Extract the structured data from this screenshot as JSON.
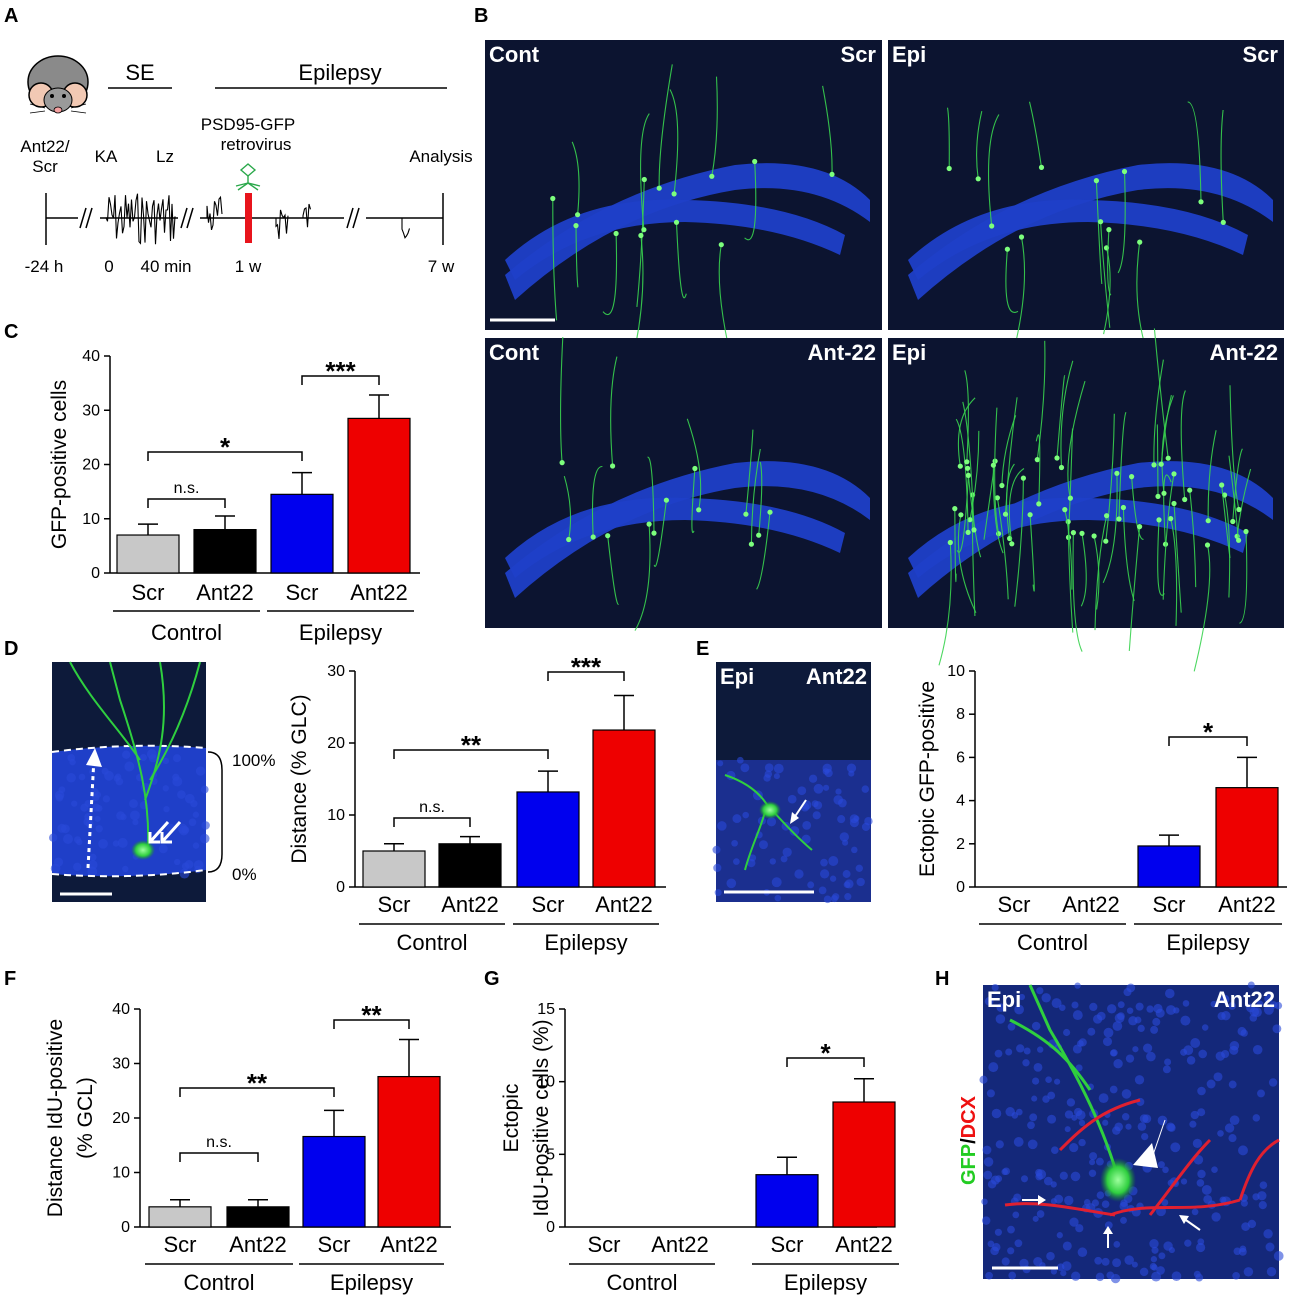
{
  "panel_labels": {
    "A": "A",
    "B": "B",
    "C": "C",
    "D": "D",
    "E": "E",
    "F": "F",
    "G": "G",
    "H": "H"
  },
  "timeline": {
    "mouse_label": "Ant22/\nScr",
    "mouse_label_l1": "Ant22/",
    "mouse_label_l2": "Scr",
    "se_label": "SE",
    "epilepsy_label": "Epilepsy",
    "ka_label": "KA",
    "lz_label": "Lz",
    "virus_l1": "PSD95-GFP",
    "virus_l2": "retrovirus",
    "analysis_label": "Analysis",
    "t_m24": "-24 h",
    "t_0": "0",
    "t_40": "40 min",
    "t_1w": "1 w",
    "t_7w": "7 w",
    "virus_bar_color": "#e8141c",
    "virus_icon_color": "#2aa84a"
  },
  "images_B": [
    {
      "left": "Cont",
      "right": "Scr"
    },
    {
      "left": "Epi",
      "right": "Scr"
    },
    {
      "left": "Cont",
      "right": "Ant-22"
    },
    {
      "left": "Epi",
      "right": "Ant-22"
    }
  ],
  "image_D": {
    "top_label": "100%",
    "bottom_label": "0%"
  },
  "image_E": {
    "left": "Epi",
    "right": "Ant22"
  },
  "image_H": {
    "left": "Epi",
    "right": "Ant22",
    "side_gfp": "GFP",
    "side_slash": "/",
    "side_dcx": "DCX",
    "gfp_color": "#22cc22",
    "dcx_color": "#ee1111"
  },
  "colors": {
    "scr_control": "#c8c8c8",
    "ant22_control": "#000000",
    "scr_epi": "#0000ee",
    "ant22_epi": "#ee0000",
    "tissue_blue": "#1f3fc8",
    "tissue_dark": "#0c1430",
    "cell_green": "#39d34f"
  },
  "chart_data": [
    {
      "id": "C",
      "type": "bar",
      "ylabel": "GFP-positive cells",
      "ylim": [
        0,
        40
      ],
      "yticks": [
        0,
        10,
        20,
        30,
        40
      ],
      "categories": [
        "Scr",
        "Ant22",
        "Scr",
        "Ant22"
      ],
      "groups": [
        "Control",
        "Epilepsy"
      ],
      "values": [
        7,
        8,
        14.5,
        28.5
      ],
      "errors": [
        2,
        2.5,
        4,
        4.3
      ],
      "annotations": [
        {
          "from": 0,
          "to": 1,
          "label": "n.s."
        },
        {
          "from": 0,
          "to": 2,
          "label": "*"
        },
        {
          "from": 2,
          "to": 3,
          "label": "***"
        }
      ]
    },
    {
      "id": "D",
      "type": "bar",
      "ylabel": "Distance (% GLC)",
      "ylim": [
        0,
        30
      ],
      "yticks": [
        0,
        10,
        20,
        30
      ],
      "categories": [
        "Scr",
        "Ant22",
        "Scr",
        "Ant22"
      ],
      "groups": [
        "Control",
        "Epilepsy"
      ],
      "values": [
        5,
        6,
        13.2,
        21.8
      ],
      "errors": [
        1,
        1,
        2.9,
        4.8
      ],
      "annotations": [
        {
          "from": 0,
          "to": 1,
          "label": "n.s."
        },
        {
          "from": 0,
          "to": 2,
          "label": "**"
        },
        {
          "from": 2,
          "to": 3,
          "label": "***"
        }
      ]
    },
    {
      "id": "E",
      "type": "bar",
      "ylabel": "Ectopic GFP-positive",
      "ylim": [
        0,
        10
      ],
      "yticks": [
        0,
        2,
        4,
        6,
        8,
        10
      ],
      "categories": [
        "Scr",
        "Ant22",
        "Scr",
        "Ant22"
      ],
      "groups": [
        "Control",
        "Epilepsy"
      ],
      "values": [
        0,
        0,
        1.9,
        4.6
      ],
      "errors": [
        0,
        0,
        0.5,
        1.4
      ],
      "annotations": [
        {
          "from": 2,
          "to": 3,
          "label": "*"
        }
      ]
    },
    {
      "id": "F",
      "type": "bar",
      "ylabel_l1": "Distance IdU-positive",
      "ylabel_l2": "(% GCL)",
      "ylim": [
        0,
        40
      ],
      "yticks": [
        0,
        10,
        20,
        30,
        40
      ],
      "categories": [
        "Scr",
        "Ant22",
        "Scr",
        "Ant22"
      ],
      "groups": [
        "Control",
        "Epilepsy"
      ],
      "values": [
        3.7,
        3.7,
        16.6,
        27.6
      ],
      "errors": [
        1.3,
        1.3,
        4.8,
        6.8
      ],
      "annotations": [
        {
          "from": 0,
          "to": 1,
          "label": "n.s."
        },
        {
          "from": 0,
          "to": 2,
          "label": "**"
        },
        {
          "from": 2,
          "to": 3,
          "label": "**"
        }
      ]
    },
    {
      "id": "G",
      "type": "bar",
      "ylabel_l1": "Ectopic",
      "ylabel_l2": "IdU-positive cells  (%)",
      "ylim": [
        0,
        15
      ],
      "yticks": [
        0,
        5,
        10,
        15
      ],
      "categories": [
        "Scr",
        "Ant22",
        "Scr",
        "Ant22"
      ],
      "groups": [
        "Control",
        "Epilepsy"
      ],
      "values": [
        0,
        0,
        3.6,
        8.6
      ],
      "errors": [
        0,
        0,
        1.2,
        1.6
      ],
      "annotations": [
        {
          "from": 2,
          "to": 3,
          "label": "*"
        }
      ]
    }
  ]
}
